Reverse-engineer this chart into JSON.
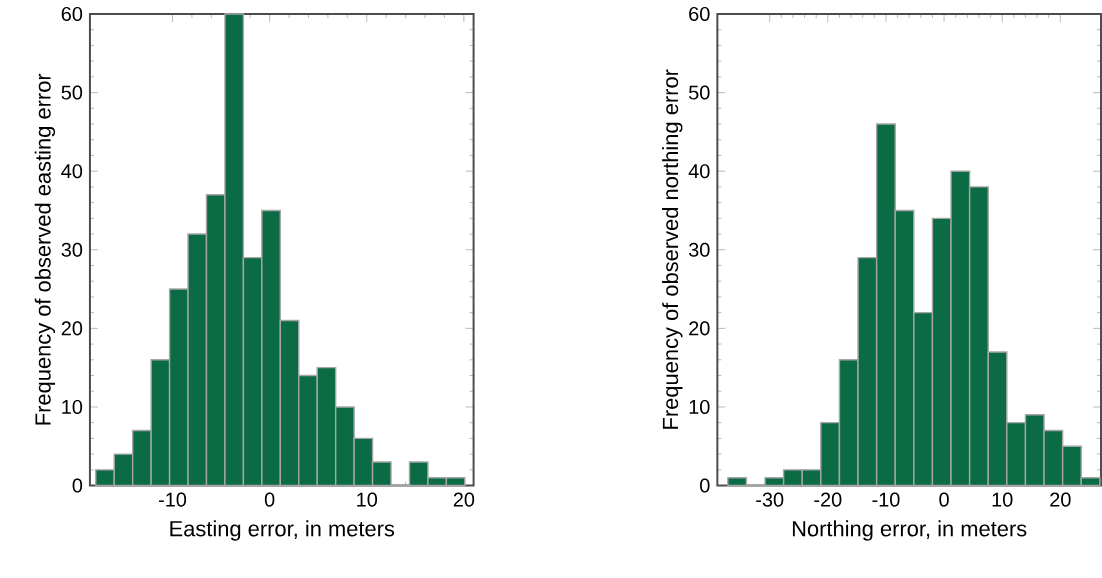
{
  "chart_data": [
    {
      "type": "histogram",
      "xlabel": "Easting error, in meters",
      "ylabel": "Frequency of observed easting error",
      "color": "#0b6b45",
      "bins": [
        -17.9,
        -16.0,
        -14.1,
        -12.2,
        -10.3,
        -8.4,
        -6.5,
        -4.6,
        -2.7,
        -0.8,
        1.1,
        3.0,
        4.9,
        6.8,
        8.7,
        10.6,
        12.5,
        14.4,
        16.3,
        18.2,
        20.1
      ],
      "values": [
        2,
        4,
        7,
        16,
        25,
        32,
        37,
        60,
        29,
        35,
        21,
        14,
        15,
        10,
        6,
        3,
        0,
        3,
        1,
        1
      ],
      "xlim": [
        -18.5,
        21
      ],
      "xticks": [
        -10,
        0,
        10,
        20
      ],
      "ylim": [
        0,
        60
      ],
      "yticks": [
        0,
        10,
        20,
        30,
        40,
        50,
        60
      ]
    },
    {
      "type": "histogram",
      "xlabel": "Northing error, in meters",
      "ylabel": "Frequency of observed northing error",
      "color": "#0b6b45",
      "bins": [
        -37.2,
        -34.0,
        -30.8,
        -27.6,
        -24.4,
        -21.2,
        -18.0,
        -14.8,
        -11.6,
        -8.4,
        -5.2,
        -2.0,
        1.2,
        4.4,
        7.6,
        10.8,
        14.0,
        17.2,
        20.4,
        23.6,
        26.8
      ],
      "values": [
        1,
        0,
        1,
        2,
        2,
        8,
        16,
        29,
        46,
        35,
        22,
        34,
        40,
        38,
        17,
        8,
        9,
        7,
        5,
        1
      ],
      "xlim": [
        -39,
        27
      ],
      "xticks": [
        -30,
        -20,
        -10,
        0,
        10,
        20
      ],
      "ylim": [
        0,
        60
      ],
      "yticks": [
        0,
        10,
        20,
        30,
        40,
        50,
        60
      ]
    }
  ]
}
